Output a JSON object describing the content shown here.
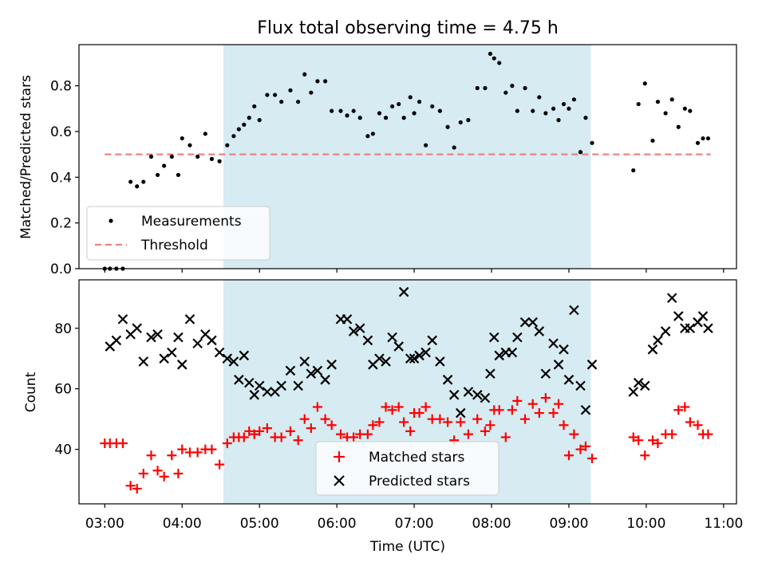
{
  "figure": {
    "title": "Flux total observing time = 4.75 h"
  },
  "colors": {
    "shade": "#add8e6",
    "measurement": "#000000",
    "threshold": "#f08080",
    "matched": "#ff0000",
    "predicted": "#000000"
  },
  "chart_data": [
    {
      "type": "scatter",
      "ylabel": "Matched/Predicted stars",
      "ylim": [
        0,
        0.98
      ],
      "yticks": [
        "0.0",
        "0.2",
        "0.4",
        "0.6",
        "0.8"
      ],
      "yticks_values": [
        0,
        0.2,
        0.4,
        0.6,
        0.8
      ],
      "xlim": [
        "02:40",
        "11:10"
      ],
      "shaded_interval": [
        "04:32",
        "09:17"
      ],
      "legend": {
        "position": "lower-left",
        "entries": [
          "Measurements",
          "Threshold"
        ]
      },
      "series": [
        {
          "name": "Measurements",
          "x": [
            "03:00",
            "03:04",
            "03:09",
            "03:14",
            "03:20",
            "03:25",
            "03:30",
            "03:36",
            "03:41",
            "03:46",
            "03:52",
            "03:57",
            "04:00",
            "04:06",
            "04:12",
            "04:18",
            "04:23",
            "04:29",
            "04:35",
            "04:40",
            "04:44",
            "04:48",
            "04:52",
            "04:56",
            "05:00",
            "05:06",
            "05:12",
            "05:17",
            "05:24",
            "05:30",
            "05:35",
            "05:40",
            "05:45",
            "05:51",
            "05:56",
            "06:03",
            "06:08",
            "06:13",
            "06:18",
            "06:24",
            "06:28",
            "06:33",
            "06:38",
            "06:43",
            "06:48",
            "06:52",
            "06:57",
            "07:00",
            "07:04",
            "07:09",
            "07:14",
            "07:20",
            "07:26",
            "07:31",
            "07:36",
            "07:42",
            "07:49",
            "07:55",
            "07:59",
            "08:02",
            "08:06",
            "08:11",
            "08:16",
            "08:20",
            "08:26",
            "08:32",
            "08:37",
            "08:42",
            "08:48",
            "08:52",
            "08:56",
            "09:00",
            "09:04",
            "09:09",
            "09:13",
            "09:18",
            "09:50",
            "09:54",
            "09:59",
            "10:05",
            "10:09",
            "10:15",
            "10:20",
            "10:25",
            "10:30",
            "10:34",
            "10:40",
            "10:44",
            "10:48"
          ],
          "values": [
            0,
            0,
            0,
            0,
            0.38,
            0.36,
            0.38,
            0.49,
            0.41,
            0.45,
            0.49,
            0.41,
            0.57,
            0.54,
            0.49,
            0.59,
            0.48,
            0.47,
            0.54,
            0.58,
            0.61,
            0.63,
            0.66,
            0.71,
            0.65,
            0.76,
            0.76,
            0.73,
            0.78,
            0.73,
            0.85,
            0.77,
            0.82,
            0.82,
            0.69,
            0.69,
            0.67,
            0.69,
            0.66,
            0.58,
            0.59,
            0.68,
            0.66,
            0.71,
            0.72,
            0.66,
            0.75,
            0.68,
            0.73,
            0.54,
            0.71,
            0.69,
            0.62,
            0.53,
            0.64,
            0.65,
            0.79,
            0.79,
            0.94,
            0.92,
            0.9,
            0.77,
            0.8,
            0.69,
            0.79,
            0.69,
            0.75,
            0.68,
            0.7,
            0.65,
            0.72,
            0.7,
            0.74,
            0.51,
            0.66,
            0.55,
            0.43,
            0.72,
            0.81,
            0.56,
            0.73,
            0.68,
            0.74,
            0.62,
            0.7,
            0.69,
            0.55,
            0.57,
            0.57
          ]
        },
        {
          "name": "Threshold",
          "x": [
            "03:00",
            "10:50"
          ],
          "values": [
            0.5,
            0.5
          ]
        }
      ]
    },
    {
      "type": "scatter",
      "xlabel": "Time (UTC)",
      "ylabel": "Count",
      "ylim": [
        22,
        96
      ],
      "yticks": [
        "40",
        "60",
        "80"
      ],
      "yticks_values": [
        40,
        60,
        80
      ],
      "xlim": [
        "02:40",
        "11:10"
      ],
      "xticks": [
        "03:00",
        "04:00",
        "05:00",
        "06:00",
        "07:00",
        "08:00",
        "09:00",
        "10:00",
        "11:00"
      ],
      "shaded_interval": [
        "04:32",
        "09:17"
      ],
      "legend": {
        "position": "lower-center",
        "entries": [
          "Matched stars",
          "Predicted stars"
        ]
      },
      "series": [
        {
          "name": "Matched stars",
          "x": [
            "03:00",
            "03:04",
            "03:09",
            "03:14",
            "03:20",
            "03:25",
            "03:30",
            "03:36",
            "03:41",
            "03:46",
            "03:52",
            "03:57",
            "04:00",
            "04:06",
            "04:12",
            "04:18",
            "04:23",
            "04:29",
            "04:35",
            "04:40",
            "04:44",
            "04:48",
            "04:52",
            "04:56",
            "05:00",
            "05:06",
            "05:12",
            "05:17",
            "05:24",
            "05:30",
            "05:35",
            "05:40",
            "05:45",
            "05:51",
            "05:56",
            "06:03",
            "06:08",
            "06:13",
            "06:18",
            "06:24",
            "06:28",
            "06:33",
            "06:38",
            "06:43",
            "06:48",
            "06:52",
            "06:57",
            "07:00",
            "07:04",
            "07:09",
            "07:14",
            "07:20",
            "07:26",
            "07:31",
            "07:36",
            "07:42",
            "07:49",
            "07:55",
            "07:59",
            "08:02",
            "08:06",
            "08:11",
            "08:16",
            "08:20",
            "08:26",
            "08:32",
            "08:37",
            "08:42",
            "08:48",
            "08:52",
            "08:56",
            "09:00",
            "09:04",
            "09:09",
            "09:13",
            "09:18",
            "09:50",
            "09:54",
            "09:59",
            "10:05",
            "10:09",
            "10:15",
            "10:20",
            "10:25",
            "10:30",
            "10:34",
            "10:40",
            "10:44",
            "10:48"
          ],
          "values": [
            42,
            42,
            42,
            42,
            28,
            27,
            32,
            38,
            33,
            31,
            38,
            32,
            40,
            39,
            39,
            40,
            40,
            35,
            42,
            44,
            44,
            44,
            46,
            45,
            46,
            47,
            44,
            44,
            46,
            43,
            50,
            47,
            54,
            50,
            48,
            45,
            44,
            44,
            45,
            45,
            48,
            49,
            54,
            53,
            54,
            49,
            46,
            52,
            52,
            54,
            50,
            50,
            49,
            43,
            49,
            45,
            50,
            46,
            48,
            53,
            53,
            44,
            53,
            56,
            50,
            55,
            52,
            57,
            52,
            55,
            48,
            38,
            45,
            40,
            41,
            37,
            44,
            43,
            38,
            43,
            42,
            45,
            45,
            53,
            54,
            49,
            48,
            45,
            45
          ]
        },
        {
          "name": "Predicted stars",
          "x": [
            "03:04",
            "03:09",
            "03:14",
            "03:20",
            "03:25",
            "03:30",
            "03:36",
            "03:41",
            "03:46",
            "03:52",
            "03:57",
            "04:00",
            "04:06",
            "04:12",
            "04:18",
            "04:23",
            "04:29",
            "04:35",
            "04:40",
            "04:44",
            "04:48",
            "04:52",
            "04:56",
            "05:00",
            "05:06",
            "05:12",
            "05:17",
            "05:24",
            "05:30",
            "05:35",
            "05:40",
            "05:45",
            "05:51",
            "05:56",
            "06:03",
            "06:08",
            "06:13",
            "06:18",
            "06:24",
            "06:28",
            "06:33",
            "06:38",
            "06:43",
            "06:48",
            "06:52",
            "06:57",
            "07:00",
            "07:04",
            "07:09",
            "07:14",
            "07:20",
            "07:26",
            "07:31",
            "07:36",
            "07:42",
            "07:49",
            "07:55",
            "07:59",
            "08:02",
            "08:06",
            "08:11",
            "08:16",
            "08:20",
            "08:26",
            "08:32",
            "08:37",
            "08:42",
            "08:48",
            "08:52",
            "08:56",
            "09:00",
            "09:04",
            "09:09",
            "09:13",
            "09:18",
            "09:50",
            "09:54",
            "09:59",
            "10:05",
            "10:09",
            "10:15",
            "10:20",
            "10:25",
            "10:30",
            "10:34",
            "10:40",
            "10:44",
            "10:48"
          ],
          "values": [
            74,
            76,
            83,
            78,
            80,
            69,
            77,
            78,
            70,
            72,
            77,
            68,
            83,
            75,
            78,
            76,
            72,
            70,
            69,
            63,
            71,
            62,
            58,
            61,
            59,
            59,
            61,
            66,
            61,
            69,
            65,
            66,
            63,
            68,
            83,
            83,
            79,
            80,
            76,
            68,
            70,
            69,
            77,
            74,
            92,
            70,
            70,
            71,
            72,
            76,
            69,
            63,
            58,
            52,
            59,
            58,
            57,
            65,
            77,
            71,
            72,
            72,
            77,
            82,
            82,
            79,
            65,
            75,
            68,
            73,
            63,
            86,
            61,
            53,
            68,
            59,
            62,
            61,
            73,
            76,
            79,
            90,
            84,
            80,
            80,
            82,
            84,
            80
          ]
        }
      ]
    }
  ]
}
